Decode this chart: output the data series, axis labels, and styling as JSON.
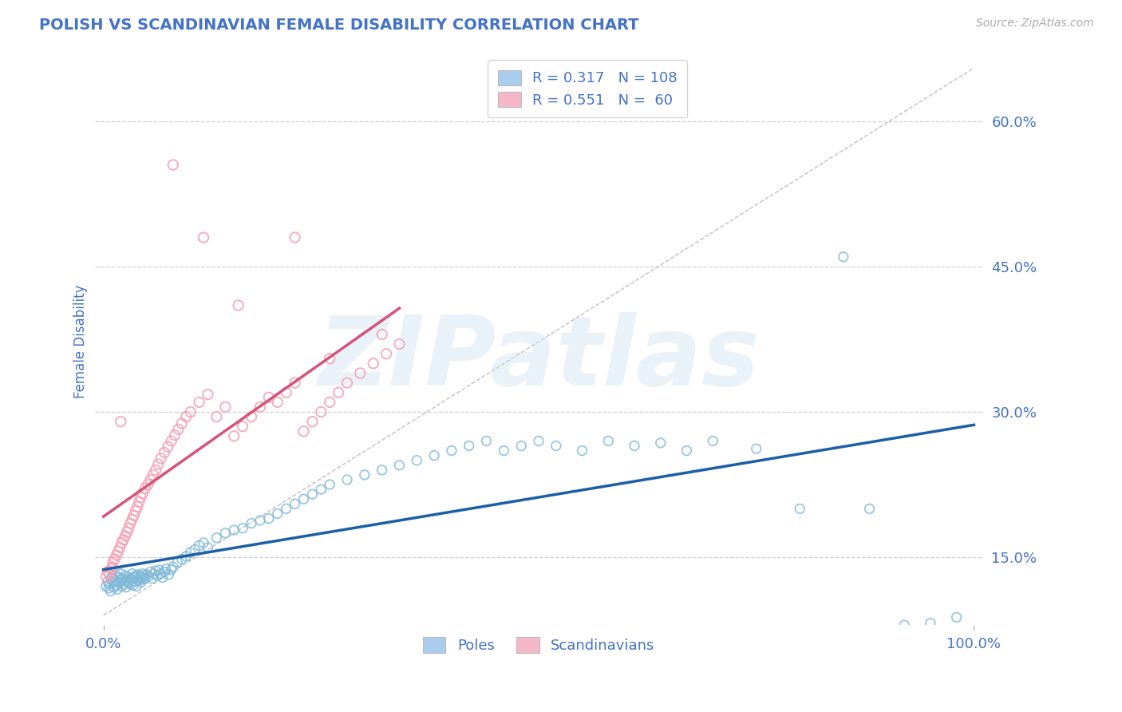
{
  "title": "POLISH VS SCANDINAVIAN FEMALE DISABILITY CORRELATION CHART",
  "source": "Source: ZipAtlas.com",
  "ylabel": "Female Disability",
  "xlim": [
    -0.01,
    1.01
  ],
  "ylim": [
    0.08,
    0.665
  ],
  "ytick_vals": [
    0.15,
    0.3,
    0.45,
    0.6
  ],
  "ytick_labels": [
    "15.0%",
    "30.0%",
    "45.0%",
    "60.0%"
  ],
  "xtick_vals": [
    0.0,
    1.0
  ],
  "xtick_labels": [
    "0.0%",
    "100.0%"
  ],
  "poles_ec": "#7fb8d8",
  "scand_ec": "#f4a0b5",
  "poles_line_color": "#1a5fa8",
  "scand_line_color": "#d4547a",
  "dashed_color": "#c0c0c0",
  "R_poles": 0.317,
  "N_poles": 108,
  "R_scand": 0.551,
  "N_scand": 60,
  "watermark_text": "ZIPatlas",
  "title_color": "#4472c4",
  "tick_color": "#4472c4",
  "axis_label_color": "#4472c4",
  "legend_poles_fc": "#aaccee",
  "legend_scand_fc": "#f4b8c8",
  "background": "#ffffff",
  "poles_x": [
    0.003,
    0.005,
    0.006,
    0.007,
    0.008,
    0.009,
    0.01,
    0.011,
    0.012,
    0.013,
    0.014,
    0.015,
    0.016,
    0.017,
    0.018,
    0.019,
    0.02,
    0.021,
    0.022,
    0.023,
    0.024,
    0.025,
    0.026,
    0.027,
    0.028,
    0.029,
    0.03,
    0.031,
    0.032,
    0.033,
    0.034,
    0.035,
    0.036,
    0.037,
    0.038,
    0.039,
    0.04,
    0.041,
    0.042,
    0.043,
    0.044,
    0.045,
    0.046,
    0.047,
    0.048,
    0.05,
    0.052,
    0.054,
    0.056,
    0.058,
    0.06,
    0.062,
    0.064,
    0.066,
    0.068,
    0.07,
    0.072,
    0.075,
    0.078,
    0.08,
    0.085,
    0.09,
    0.095,
    0.1,
    0.105,
    0.11,
    0.115,
    0.12,
    0.13,
    0.14,
    0.15,
    0.16,
    0.17,
    0.18,
    0.19,
    0.2,
    0.21,
    0.22,
    0.23,
    0.24,
    0.25,
    0.26,
    0.28,
    0.3,
    0.32,
    0.34,
    0.36,
    0.38,
    0.4,
    0.42,
    0.44,
    0.46,
    0.48,
    0.5,
    0.52,
    0.55,
    0.58,
    0.61,
    0.64,
    0.67,
    0.7,
    0.75,
    0.8,
    0.85,
    0.88,
    0.92,
    0.95,
    0.98
  ],
  "poles_y": [
    0.12,
    0.125,
    0.118,
    0.122,
    0.115,
    0.128,
    0.13,
    0.124,
    0.119,
    0.126,
    0.132,
    0.121,
    0.117,
    0.129,
    0.123,
    0.127,
    0.133,
    0.12,
    0.128,
    0.122,
    0.125,
    0.131,
    0.119,
    0.126,
    0.13,
    0.124,
    0.128,
    0.122,
    0.127,
    0.133,
    0.121,
    0.129,
    0.125,
    0.131,
    0.12,
    0.127,
    0.132,
    0.126,
    0.13,
    0.124,
    0.129,
    0.133,
    0.127,
    0.131,
    0.128,
    0.132,
    0.13,
    0.135,
    0.128,
    0.133,
    0.136,
    0.131,
    0.137,
    0.133,
    0.129,
    0.135,
    0.138,
    0.132,
    0.137,
    0.14,
    0.145,
    0.148,
    0.151,
    0.155,
    0.158,
    0.162,
    0.165,
    0.16,
    0.17,
    0.175,
    0.178,
    0.18,
    0.185,
    0.188,
    0.19,
    0.195,
    0.2,
    0.205,
    0.21,
    0.215,
    0.22,
    0.225,
    0.23,
    0.235,
    0.24,
    0.245,
    0.25,
    0.255,
    0.26,
    0.265,
    0.27,
    0.26,
    0.265,
    0.27,
    0.265,
    0.26,
    0.27,
    0.265,
    0.268,
    0.26,
    0.27,
    0.262,
    0.2,
    0.46,
    0.2,
    0.08,
    0.082,
    0.088
  ],
  "scand_x": [
    0.003,
    0.005,
    0.007,
    0.009,
    0.01,
    0.011,
    0.013,
    0.015,
    0.017,
    0.019,
    0.021,
    0.023,
    0.025,
    0.027,
    0.029,
    0.031,
    0.033,
    0.035,
    0.037,
    0.039,
    0.041,
    0.043,
    0.045,
    0.048,
    0.051,
    0.054,
    0.057,
    0.06,
    0.063,
    0.066,
    0.07,
    0.074,
    0.078,
    0.082,
    0.086,
    0.09,
    0.095,
    0.1,
    0.11,
    0.12,
    0.13,
    0.14,
    0.15,
    0.16,
    0.17,
    0.18,
    0.19,
    0.2,
    0.21,
    0.22,
    0.23,
    0.24,
    0.25,
    0.26,
    0.27,
    0.28,
    0.295,
    0.31,
    0.325,
    0.34
  ],
  "scand_y": [
    0.13,
    0.135,
    0.132,
    0.138,
    0.14,
    0.145,
    0.148,
    0.152,
    0.156,
    0.16,
    0.165,
    0.168,
    0.172,
    0.176,
    0.18,
    0.185,
    0.189,
    0.193,
    0.198,
    0.202,
    0.207,
    0.212,
    0.216,
    0.221,
    0.225,
    0.23,
    0.235,
    0.24,
    0.246,
    0.252,
    0.258,
    0.264,
    0.27,
    0.276,
    0.282,
    0.288,
    0.295,
    0.3,
    0.31,
    0.318,
    0.295,
    0.305,
    0.275,
    0.285,
    0.295,
    0.305,
    0.315,
    0.31,
    0.32,
    0.33,
    0.28,
    0.29,
    0.3,
    0.31,
    0.32,
    0.33,
    0.34,
    0.35,
    0.36,
    0.37
  ],
  "scand_outliers_x": [
    0.02,
    0.08,
    0.115,
    0.155,
    0.22,
    0.26,
    0.32
  ],
  "scand_outliers_y": [
    0.29,
    0.555,
    0.48,
    0.41,
    0.48,
    0.355,
    0.38
  ]
}
